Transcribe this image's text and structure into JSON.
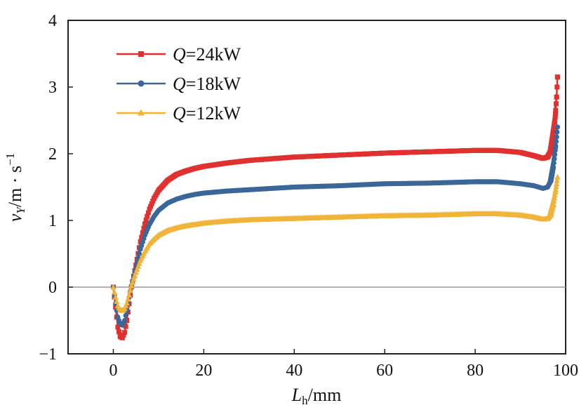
{
  "chart_data": {
    "type": "line",
    "title": "",
    "xlabel": {
      "main": "L",
      "sub": "h",
      "unit": "/mm"
    },
    "ylabel": {
      "main": "v",
      "sub": "Y",
      "unit": "/m · s",
      "sup": "−1"
    },
    "xlim": [
      -10,
      100
    ],
    "ylim": [
      -1,
      4
    ],
    "xticks": [
      0,
      20,
      40,
      60,
      80,
      100
    ],
    "xtick_labels": [
      "0",
      "20",
      "40",
      "60",
      "80",
      "100"
    ],
    "yticks": [
      -1,
      0,
      1,
      2,
      3,
      4
    ],
    "ytick_labels": [
      "−1",
      "0",
      "1",
      "2",
      "3",
      "4"
    ],
    "zero_line": true,
    "grid": false,
    "legend_position": "top-left",
    "series": [
      {
        "name": "Q=24kW",
        "label_var": "Q",
        "label_rest": "=24kW",
        "color": "#e03030",
        "marker": "square",
        "points": [
          [
            0,
            0
          ],
          [
            0.5,
            -0.3
          ],
          [
            1,
            -0.6
          ],
          [
            1.5,
            -0.74
          ],
          [
            2,
            -0.76
          ],
          [
            2.5,
            -0.68
          ],
          [
            3,
            -0.5
          ],
          [
            3.5,
            -0.25
          ],
          [
            4,
            0
          ],
          [
            5,
            0.33
          ],
          [
            6,
            0.68
          ],
          [
            7,
            0.95
          ],
          [
            8,
            1.17
          ],
          [
            9,
            1.33
          ],
          [
            10,
            1.45
          ],
          [
            12,
            1.6
          ],
          [
            14,
            1.69
          ],
          [
            16,
            1.74
          ],
          [
            18,
            1.78
          ],
          [
            20,
            1.81
          ],
          [
            25,
            1.86
          ],
          [
            30,
            1.9
          ],
          [
            40,
            1.95
          ],
          [
            50,
            1.98
          ],
          [
            60,
            2.01
          ],
          [
            70,
            2.03
          ],
          [
            80,
            2.05
          ],
          [
            85,
            2.05
          ],
          [
            90,
            2.02
          ],
          [
            93,
            1.97
          ],
          [
            95,
            1.93
          ],
          [
            96,
            1.95
          ],
          [
            96.8,
            2.05
          ],
          [
            97.3,
            2.25
          ],
          [
            97.7,
            2.55
          ],
          [
            98,
            2.85
          ],
          [
            98.2,
            3.15
          ]
        ]
      },
      {
        "name": "Q=18kW",
        "label_var": "Q",
        "label_rest": "=18kW",
        "color": "#3b6698",
        "marker": "circle",
        "points": [
          [
            0,
            0
          ],
          [
            0.5,
            -0.25
          ],
          [
            1,
            -0.45
          ],
          [
            1.5,
            -0.55
          ],
          [
            2,
            -0.57
          ],
          [
            2.5,
            -0.5
          ],
          [
            3,
            -0.35
          ],
          [
            3.5,
            -0.15
          ],
          [
            4,
            0.02
          ],
          [
            5,
            0.3
          ],
          [
            6,
            0.57
          ],
          [
            7,
            0.78
          ],
          [
            8,
            0.94
          ],
          [
            9,
            1.06
          ],
          [
            10,
            1.15
          ],
          [
            12,
            1.26
          ],
          [
            14,
            1.32
          ],
          [
            16,
            1.36
          ],
          [
            18,
            1.39
          ],
          [
            20,
            1.41
          ],
          [
            25,
            1.44
          ],
          [
            30,
            1.46
          ],
          [
            40,
            1.5
          ],
          [
            50,
            1.52
          ],
          [
            60,
            1.55
          ],
          [
            70,
            1.56
          ],
          [
            80,
            1.58
          ],
          [
            85,
            1.58
          ],
          [
            90,
            1.55
          ],
          [
            93,
            1.52
          ],
          [
            95,
            1.48
          ],
          [
            96,
            1.5
          ],
          [
            96.8,
            1.6
          ],
          [
            97.3,
            1.8
          ],
          [
            97.7,
            2.05
          ],
          [
            98,
            2.25
          ],
          [
            98.2,
            2.4
          ]
        ]
      },
      {
        "name": "Q=12kW",
        "label_var": "Q",
        "label_rest": "=12kW",
        "color": "#f0b43a",
        "marker": "triangle",
        "points": [
          [
            0,
            0
          ],
          [
            0.5,
            -0.15
          ],
          [
            1,
            -0.28
          ],
          [
            1.5,
            -0.34
          ],
          [
            2,
            -0.35
          ],
          [
            2.5,
            -0.32
          ],
          [
            3,
            -0.24
          ],
          [
            3.5,
            -0.12
          ],
          [
            4,
            0.02
          ],
          [
            5,
            0.22
          ],
          [
            6,
            0.4
          ],
          [
            7,
            0.54
          ],
          [
            8,
            0.65
          ],
          [
            9,
            0.72
          ],
          [
            10,
            0.78
          ],
          [
            12,
            0.85
          ],
          [
            14,
            0.89
          ],
          [
            16,
            0.92
          ],
          [
            18,
            0.94
          ],
          [
            20,
            0.96
          ],
          [
            25,
            0.99
          ],
          [
            30,
            1.01
          ],
          [
            40,
            1.03
          ],
          [
            50,
            1.05
          ],
          [
            60,
            1.07
          ],
          [
            70,
            1.08
          ],
          [
            80,
            1.1
          ],
          [
            85,
            1.1
          ],
          [
            90,
            1.08
          ],
          [
            93,
            1.05
          ],
          [
            95,
            1.02
          ],
          [
            96,
            1.03
          ],
          [
            96.8,
            1.1
          ],
          [
            97.3,
            1.25
          ],
          [
            97.7,
            1.42
          ],
          [
            98,
            1.55
          ],
          [
            98.2,
            1.65
          ]
        ]
      }
    ]
  }
}
